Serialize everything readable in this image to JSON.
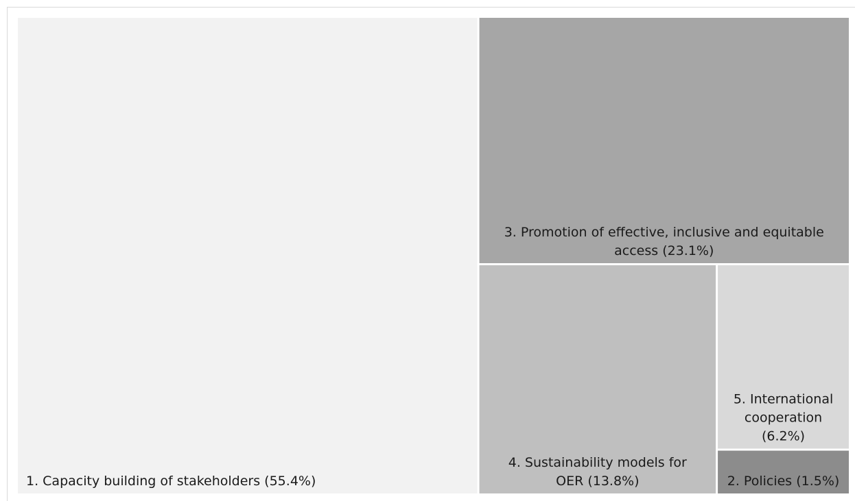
{
  "chart_data": {
    "type": "treemap",
    "title": "",
    "items": [
      {
        "label_lines": [
          "1. Capacity building of stakeholders (55.4%)"
        ],
        "value": 55.4,
        "color": "#f2f2f2",
        "align": "start"
      },
      {
        "label_lines": [
          "3. Promotion of effective, inclusive and equitable",
          "access  (23.1%)"
        ],
        "value": 23.1,
        "color": "#a6a6a6",
        "align": "middle"
      },
      {
        "label_lines": [
          "4. Sustainability models for",
          "OER (13.8%)"
        ],
        "value": 13.8,
        "color": "#bfbfbf",
        "align": "middle"
      },
      {
        "label_lines": [
          "5. International",
          "cooperation",
          "(6.2%)"
        ],
        "value": 6.2,
        "color": "#d9d9d9",
        "align": "middle"
      },
      {
        "label_lines": [
          "2. Policies (1.5%)"
        ],
        "value": 1.5,
        "color": "#8c8c8c",
        "align": "middle"
      }
    ]
  }
}
